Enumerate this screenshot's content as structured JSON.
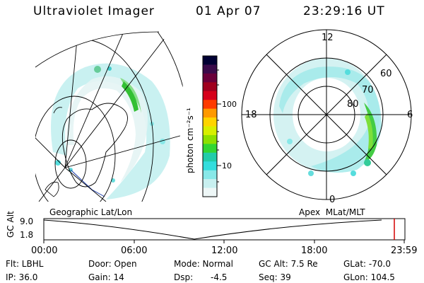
{
  "header": {
    "title": "Ultraviolet Imager",
    "date": "01 Apr 07",
    "time": "23:29:16 UT"
  },
  "geo_map": {
    "label": "Geographic Lat/Lon"
  },
  "polar_map": {
    "label": "Apex  MLat/MLT",
    "mlt_labels": {
      "top": "12",
      "left": "18",
      "right": "6",
      "bottom": "0"
    },
    "lat_labels": [
      "60",
      "70",
      "80"
    ]
  },
  "colorbar": {
    "unit_label": "photon cm⁻²s⁻¹",
    "ticks": [
      "100",
      "10"
    ],
    "colors": [
      "#000033",
      "#3a0a4a",
      "#6a003a",
      "#a0001e",
      "#d6001a",
      "#ff3a00",
      "#ff9900",
      "#ffd400",
      "#d8ef00",
      "#8ee000",
      "#33d633",
      "#22ccaa",
      "#33dddd",
      "#88e8e8",
      "#c8f0f0",
      "#eef7f7"
    ]
  },
  "timeline": {
    "axis_label": "GC Alt",
    "y_top": "9.0",
    "y_bottom": "1.8",
    "ticks": [
      "00:00",
      "06:00",
      "12:00",
      "18:00",
      "23:59"
    ],
    "marker_color": "#d40000"
  },
  "info": {
    "filter_label": "Flt: LBHL",
    "ip_label": "IP: 36.0",
    "door_label": "Door: Open",
    "gain_label": "Gain: 14",
    "mode_label": "Mode: Normal",
    "dsp_label": "Dsp:",
    "dsp_value": "-4.5",
    "gcalt_label": "GC Alt: 7.5 Re",
    "seq_label": "Seq: 39",
    "glat_label": "GLat: -70.0",
    "glon_label": "GLon: 104.5"
  }
}
